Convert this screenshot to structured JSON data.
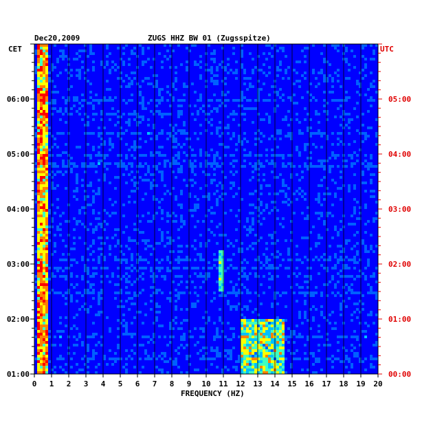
{
  "header": {
    "date": "Dec20,2009",
    "station": "ZUGS HHZ BW 01 (Zugsspitze)",
    "left_zone": "CET",
    "right_zone": "UTC"
  },
  "chart_data": {
    "type": "heatmap",
    "xlabel": "FREQUENCY (HZ)",
    "xlim": [
      0,
      20
    ],
    "x_ticks": [
      "0",
      "1",
      "2",
      "3",
      "4",
      "5",
      "6",
      "7",
      "8",
      "9",
      "10",
      "11",
      "12",
      "13",
      "14",
      "15",
      "16",
      "17",
      "18",
      "19",
      "20"
    ],
    "y_ticks_left": [
      "01:00",
      "02:00",
      "03:00",
      "04:00",
      "05:00",
      "06:00"
    ],
    "y_ticks_right": [
      "00:00",
      "01:00",
      "02:00",
      "03:00",
      "04:00",
      "05:00"
    ],
    "time_range_utc": [
      "00:00",
      "06:00"
    ],
    "grid": true,
    "colormap": [
      "#0000a0",
      "#0000ff",
      "#0060ff",
      "#00c0ff",
      "#40ffbf",
      "#ffff00",
      "#ff8000",
      "#ff0000"
    ],
    "features": [
      {
        "name": "low-frequency band",
        "freq_range_hz": [
          0.1,
          0.8
        ],
        "intensity": "high"
      },
      {
        "name": "noise band",
        "freq_range_hz": [
          12,
          14.5
        ],
        "time_range_utc": [
          "00:00",
          "01:00"
        ],
        "intensity": "medium-high"
      },
      {
        "name": "line",
        "freq_hz": 10.9,
        "time_range_utc": [
          "01:30",
          "02:15"
        ],
        "intensity": "medium"
      }
    ]
  },
  "colors": {
    "axis": "#000000",
    "utc_labels": "#e00000",
    "background_low": "#0000c8"
  }
}
